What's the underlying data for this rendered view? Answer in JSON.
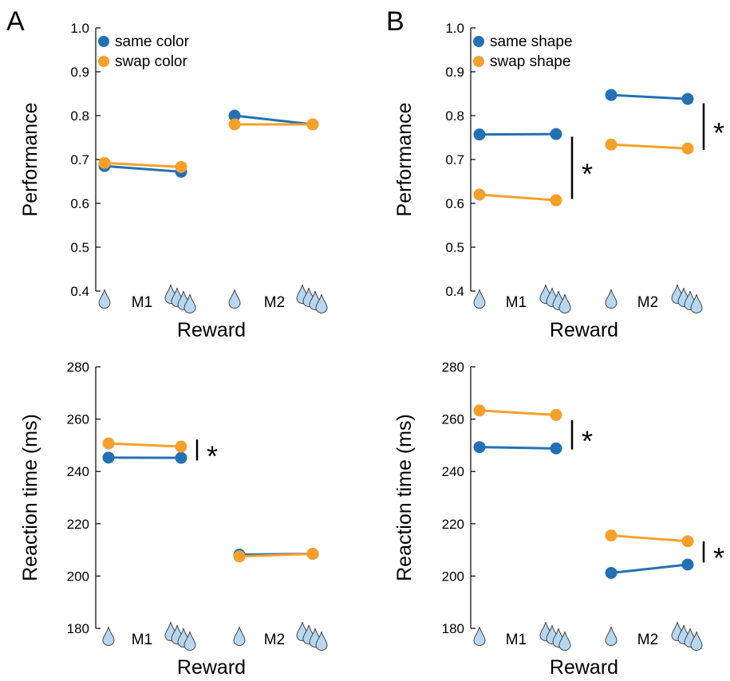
{
  "figure": {
    "panel_letters": [
      "A",
      "B"
    ],
    "reward_icons": {
      "small": "single-water-drop-icon",
      "large": "four-water-drops-icon",
      "color": "#b7d7f0"
    }
  },
  "colors": {
    "same": "#2371b5",
    "swap": "#f6a02a"
  },
  "chart_data": [
    {
      "id": "A-performance",
      "type": "line",
      "ylabel": "Performance",
      "xlabel": "Reward",
      "ylim": [
        0.4,
        1.0
      ],
      "yticks": [
        "0.4",
        "0.5",
        "0.6",
        "0.7",
        "0.8",
        "0.9",
        "1.0"
      ],
      "groups": [
        "M1",
        "M2"
      ],
      "x": [
        "small reward",
        "large reward"
      ],
      "legend": {
        "position": "top-left",
        "entries": [
          "same color",
          "swap color"
        ]
      },
      "series": [
        {
          "name": "same color",
          "color_key": "same",
          "values": {
            "M1": [
              0.685,
              0.672
            ],
            "M2": [
              0.8,
              0.78
            ]
          }
        },
        {
          "name": "swap color",
          "color_key": "swap",
          "values": {
            "M1": [
              0.692,
              0.683
            ],
            "M2": [
              0.78,
              0.78
            ]
          }
        }
      ],
      "significance": []
    },
    {
      "id": "B-performance",
      "type": "line",
      "ylabel": "Performance",
      "xlabel": "Reward",
      "ylim": [
        0.4,
        1.0
      ],
      "yticks": [
        "0.4",
        "0.5",
        "0.6",
        "0.7",
        "0.8",
        "0.9",
        "1.0"
      ],
      "groups": [
        "M1",
        "M2"
      ],
      "x": [
        "small reward",
        "large reward"
      ],
      "legend": {
        "position": "top-left",
        "entries": [
          "same shape",
          "swap shape"
        ]
      },
      "series": [
        {
          "name": "same shape",
          "color_key": "same",
          "values": {
            "M1": [
              0.757,
              0.758
            ],
            "M2": [
              0.847,
              0.838
            ]
          }
        },
        {
          "name": "swap shape",
          "color_key": "swap",
          "values": {
            "M1": [
              0.62,
              0.607
            ],
            "M2": [
              0.734,
              0.725
            ]
          }
        }
      ],
      "significance": [
        {
          "group": "M1",
          "range": [
            0.61,
            0.752
          ],
          "label": "*"
        },
        {
          "group": "M2",
          "range": [
            0.722,
            0.828
          ],
          "label": "*"
        }
      ]
    },
    {
      "id": "A-reaction-time",
      "type": "line",
      "ylabel": "Reaction time (ms)",
      "xlabel": "Reward",
      "ylim": [
        180,
        280
      ],
      "yticks": [
        "180",
        "200",
        "220",
        "240",
        "260",
        "280"
      ],
      "groups": [
        "M1",
        "M2"
      ],
      "x": [
        "small reward",
        "large reward"
      ],
      "legend": null,
      "series": [
        {
          "name": "same color",
          "color_key": "same",
          "values": {
            "M1": [
              245.3,
              245.2
            ],
            "M2": [
              208.2,
              208.5
            ]
          }
        },
        {
          "name": "swap color",
          "color_key": "swap",
          "values": {
            "M1": [
              250.7,
              249.5
            ],
            "M2": [
              207.5,
              208.5
            ]
          }
        }
      ],
      "significance": [
        {
          "group": "M1",
          "range": [
            244.2,
            252.2
          ],
          "label": "*"
        }
      ]
    },
    {
      "id": "B-reaction-time",
      "type": "line",
      "ylabel": "Reaction time (ms)",
      "xlabel": "Reward",
      "ylim": [
        180,
        280
      ],
      "yticks": [
        "180",
        "200",
        "220",
        "240",
        "260",
        "280"
      ],
      "groups": [
        "M1",
        "M2"
      ],
      "x": [
        "small reward",
        "large reward"
      ],
      "legend": null,
      "series": [
        {
          "name": "same shape",
          "color_key": "same",
          "values": {
            "M1": [
              249.3,
              248.8
            ],
            "M2": [
              201.2,
              204.4
            ]
          }
        },
        {
          "name": "swap shape",
          "color_key": "swap",
          "values": {
            "M1": [
              263.3,
              261.6
            ],
            "M2": [
              215.5,
              213.3
            ]
          }
        }
      ],
      "significance": [
        {
          "group": "M1",
          "range": [
            248.4,
            259.6
          ],
          "label": "*"
        },
        {
          "group": "M2",
          "range": [
            205.2,
            213.3
          ],
          "label": "*"
        }
      ]
    }
  ]
}
